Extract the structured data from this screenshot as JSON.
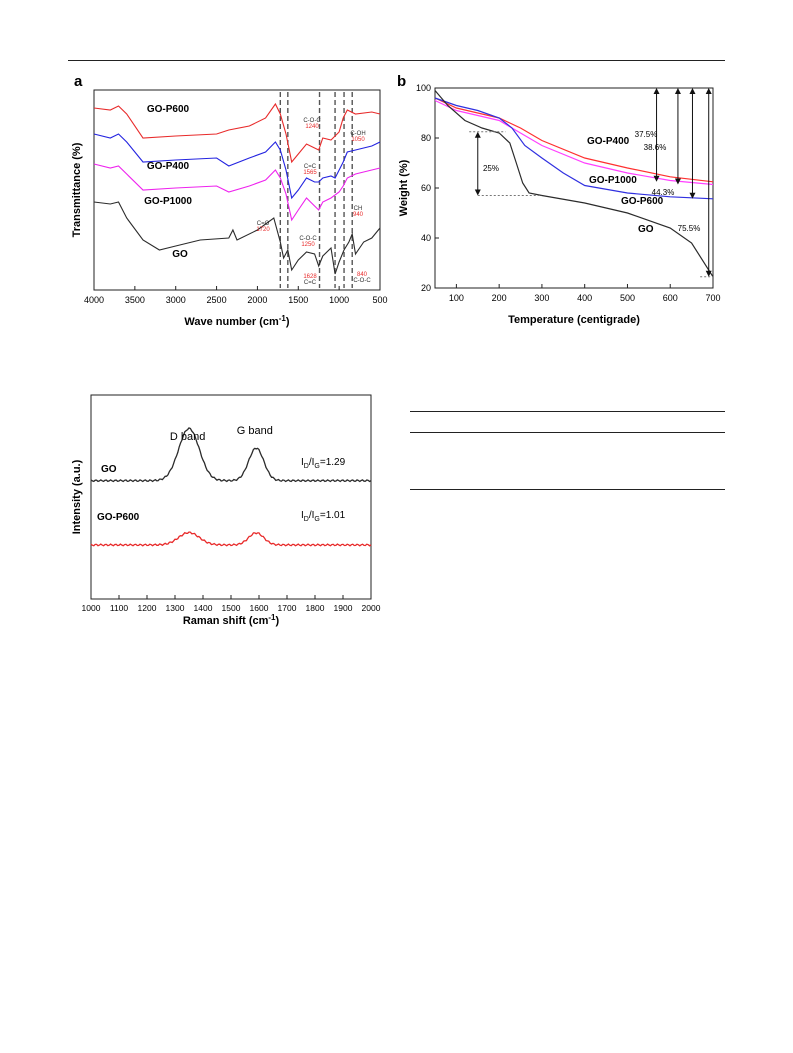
{
  "colors": {
    "GO": "#2b2b2b",
    "GO-P400": "#2323e0",
    "GO-P600": "#e82a2a",
    "GO-P1000": "#ee22ee",
    "GO-P400_tga": "#ff3030",
    "GO-P600_tga": "#3030e0",
    "GO-P1000_tga": "#ff40ff"
  },
  "panel_a": {
    "letter": "a",
    "chart_data": {
      "type": "line",
      "xlabel": "Wave number (cm",
      "xlabel_sup": "-1",
      "xlabel_end": ")",
      "ylabel": "Transmittance (%)",
      "xlim": [
        4000,
        500
      ],
      "x_ticks": [
        4000,
        3500,
        3000,
        2500,
        2000,
        1500,
        1000,
        500
      ],
      "dashed_lines": [
        1720,
        1628,
        1240,
        1050,
        940,
        840
      ],
      "series": [
        {
          "name": "GO-P600",
          "points": [
            [
              4000,
              91
            ],
            [
              3800,
              90
            ],
            [
              3700,
              92
            ],
            [
              3600,
              88
            ],
            [
              3400,
              76
            ],
            [
              3000,
              77
            ],
            [
              2500,
              78
            ],
            [
              2350,
              80
            ],
            [
              2100,
              82
            ],
            [
              1900,
              86
            ],
            [
              1780,
              93
            ],
            [
              1720,
              88
            ],
            [
              1650,
              78
            ],
            [
              1580,
              64
            ],
            [
              1500,
              68
            ],
            [
              1400,
              73
            ],
            [
              1300,
              71
            ],
            [
              1250,
              70
            ],
            [
              1200,
              76
            ],
            [
              1100,
              75
            ],
            [
              1000,
              79
            ],
            [
              950,
              86
            ],
            [
              900,
              90
            ],
            [
              800,
              88
            ],
            [
              600,
              89
            ],
            [
              500,
              88
            ]
          ]
        },
        {
          "name": "GO-P400",
          "points": [
            [
              4000,
              78
            ],
            [
              3800,
              76
            ],
            [
              3700,
              78
            ],
            [
              3600,
              74
            ],
            [
              3400,
              64
            ],
            [
              3000,
              65
            ],
            [
              2500,
              66
            ],
            [
              2350,
              62
            ],
            [
              2100,
              66
            ],
            [
              1900,
              69
            ],
            [
              1780,
              74
            ],
            [
              1720,
              70
            ],
            [
              1650,
              60
            ],
            [
              1580,
              46
            ],
            [
              1500,
              50
            ],
            [
              1400,
              56
            ],
            [
              1300,
              54
            ],
            [
              1250,
              54
            ],
            [
              1200,
              56
            ],
            [
              1100,
              57
            ],
            [
              1050,
              56
            ],
            [
              950,
              64
            ],
            [
              900,
              69
            ],
            [
              800,
              70
            ],
            [
              600,
              72
            ],
            [
              500,
              74
            ]
          ]
        },
        {
          "name": "GO-P1000",
          "points": [
            [
              4000,
              63
            ],
            [
              3800,
              61
            ],
            [
              3700,
              62
            ],
            [
              3600,
              58
            ],
            [
              3400,
              50
            ],
            [
              3000,
              51
            ],
            [
              2500,
              52
            ],
            [
              2350,
              49
            ],
            [
              2100,
              52
            ],
            [
              1900,
              55
            ],
            [
              1780,
              60
            ],
            [
              1720,
              56
            ],
            [
              1650,
              48
            ],
            [
              1580,
              35
            ],
            [
              1500,
              40
            ],
            [
              1400,
              46
            ],
            [
              1300,
              42
            ],
            [
              1250,
              40
            ],
            [
              1200,
              44
            ],
            [
              1100,
              46
            ],
            [
              1000,
              49
            ],
            [
              950,
              52
            ],
            [
              900,
              56
            ],
            [
              800,
              58
            ],
            [
              600,
              60
            ],
            [
              500,
              61
            ]
          ]
        },
        {
          "name": "GO",
          "points": [
            [
              4000,
              44
            ],
            [
              3800,
              43
            ],
            [
              3700,
              44
            ],
            [
              3600,
              36
            ],
            [
              3400,
              25
            ],
            [
              3200,
              20
            ],
            [
              3000,
              22
            ],
            [
              2700,
              25
            ],
            [
              2350,
              26
            ],
            [
              2300,
              30
            ],
            [
              2250,
              25
            ],
            [
              2000,
              30
            ],
            [
              1900,
              33
            ],
            [
              1800,
              36
            ],
            [
              1720,
              24
            ],
            [
              1680,
              16
            ],
            [
              1628,
              20
            ],
            [
              1580,
              10
            ],
            [
              1500,
              15
            ],
            [
              1400,
              19
            ],
            [
              1300,
              18
            ],
            [
              1250,
              12
            ],
            [
              1200,
              17
            ],
            [
              1100,
              21
            ],
            [
              1050,
              8
            ],
            [
              1000,
              14
            ],
            [
              940,
              20
            ],
            [
              880,
              24
            ],
            [
              840,
              28
            ],
            [
              800,
              18
            ],
            [
              700,
              24
            ],
            [
              600,
              26
            ],
            [
              500,
              31
            ]
          ]
        }
      ],
      "series_labels": [
        "GO-P600",
        "GO-P400",
        "GO-P1000",
        "GO"
      ],
      "annotations": [
        {
          "text": "C-O-C",
          "color": "#333"
        },
        {
          "text": "1240",
          "color": "#e82a2a"
        },
        {
          "text": "C-OH",
          "color": "#333"
        },
        {
          "text": "1050",
          "color": "#e82a2a"
        },
        {
          "text": "C=C",
          "color": "#333"
        },
        {
          "text": "1565",
          "color": "#e82a2a"
        },
        {
          "text": "C=O",
          "color": "#333"
        },
        {
          "text": "1720",
          "color": "#e82a2a"
        },
        {
          "text": "CH",
          "color": "#333"
        },
        {
          "text": "940",
          "color": "#e82a2a"
        },
        {
          "text": "C-O-C",
          "color": "#333"
        },
        {
          "text": "1250",
          "color": "#e82a2a"
        },
        {
          "text": "1628",
          "color": "#e82a2a"
        },
        {
          "text": "C=C",
          "color": "#333"
        },
        {
          "text": "840",
          "color": "#e82a2a"
        },
        {
          "text": "C-O-C",
          "color": "#333"
        }
      ]
    }
  },
  "panel_b": {
    "letter": "b",
    "chart_data": {
      "type": "line",
      "xlabel": "Temperature (centigrade)",
      "ylabel": "Weight (%)",
      "xlim": [
        50,
        700
      ],
      "ylim": [
        20,
        100
      ],
      "x_ticks": [
        100,
        200,
        300,
        400,
        500,
        600,
        700
      ],
      "y_ticks": [
        20,
        40,
        60,
        80,
        100
      ],
      "series": [
        {
          "name": "GO-P400",
          "points": [
            [
              50,
              96
            ],
            [
              100,
              92
            ],
            [
              150,
              90
            ],
            [
              200,
              88
            ],
            [
              250,
              84
            ],
            [
              300,
              79
            ],
            [
              400,
              72
            ],
            [
              500,
              68
            ],
            [
              600,
              64.5
            ],
            [
              700,
              62.5
            ]
          ]
        },
        {
          "name": "GO-P1000",
          "points": [
            [
              50,
              95
            ],
            [
              100,
              91
            ],
            [
              150,
              89
            ],
            [
              200,
              87
            ],
            [
              250,
              82
            ],
            [
              300,
              77
            ],
            [
              400,
              70
            ],
            [
              500,
              66
            ],
            [
              600,
              63
            ],
            [
              700,
              61.4
            ]
          ]
        },
        {
          "name": "GO-P600",
          "points": [
            [
              50,
              96
            ],
            [
              100,
              93
            ],
            [
              150,
              91
            ],
            [
              200,
              88
            ],
            [
              230,
              84
            ],
            [
              260,
              77
            ],
            [
              300,
              72
            ],
            [
              350,
              66
            ],
            [
              400,
              61
            ],
            [
              500,
              58
            ],
            [
              600,
              56.5
            ],
            [
              700,
              55.7
            ]
          ]
        },
        {
          "name": "GO",
          "points": [
            [
              50,
              99
            ],
            [
              80,
              93
            ],
            [
              120,
              87
            ],
            [
              160,
              84
            ],
            [
              200,
              82
            ],
            [
              225,
              78
            ],
            [
              240,
              70
            ],
            [
              255,
              62
            ],
            [
              270,
              58
            ],
            [
              300,
              57
            ],
            [
              400,
              54
            ],
            [
              500,
              50
            ],
            [
              600,
              44
            ],
            [
              650,
              38
            ],
            [
              700,
              24.5
            ]
          ]
        }
      ],
      "series_labels": [
        "GO-P400",
        "GO-P1000",
        "GO-P600",
        "GO"
      ],
      "arrow_labels": [
        "25%",
        "37.5%",
        "38.6%",
        "44.3%",
        "75.5%"
      ]
    }
  },
  "panel_c": {
    "chart_data": {
      "type": "line",
      "xlabel": "Raman shift (cm",
      "xlabel_sup": "-1",
      "xlabel_end": ")",
      "ylabel": "Intensity (a.u.)",
      "xlim": [
        1000,
        2000
      ],
      "x_ticks": [
        1000,
        1100,
        1200,
        1300,
        1400,
        1500,
        1600,
        1700,
        1800,
        1900,
        2000
      ],
      "band_labels": [
        "D band",
        "G band"
      ],
      "series": [
        {
          "name": "GO",
          "ratio_label": "=1.29",
          "baseline": 0.58,
          "d_peak": 0.8,
          "g_peak": 0.5
        },
        {
          "name": "GO-P600",
          "ratio_label": "=1.01",
          "baseline": 0.265,
          "d_peak": 0.19,
          "g_peak": 0.185
        }
      ],
      "ratio_prefix": "I",
      "ratio_sub_d": "D",
      "ratio_sub_g": "G"
    }
  }
}
